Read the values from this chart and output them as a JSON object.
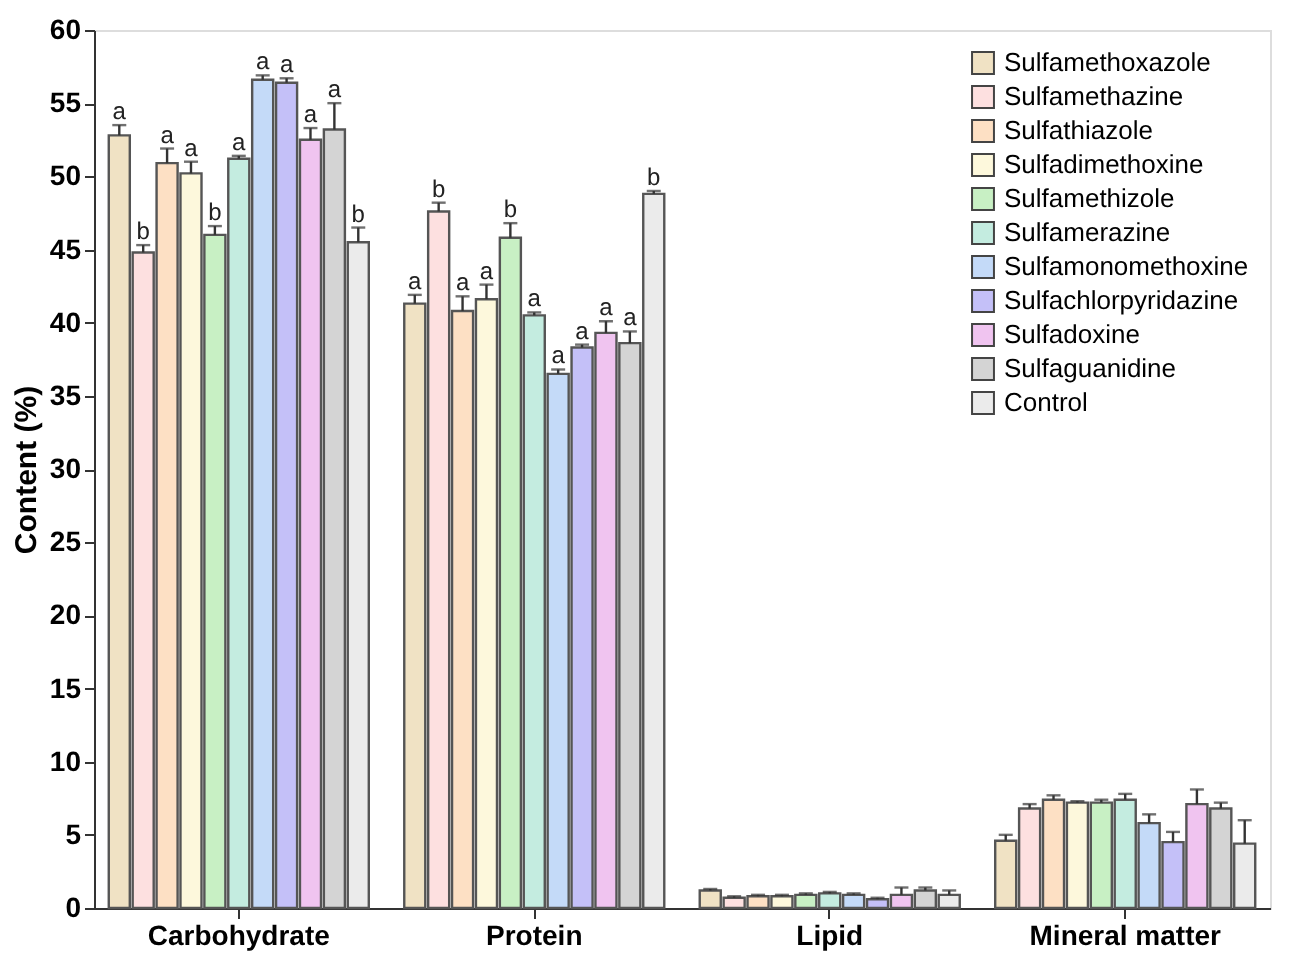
{
  "chart_data": {
    "type": "bar",
    "ylabel": "Content (%)",
    "categories": [
      "Carbohydrate",
      "Protein",
      "Lipid",
      "Mineral matter"
    ],
    "ylim": [
      0,
      60
    ],
    "yticks": [
      0,
      5,
      10,
      15,
      20,
      25,
      30,
      35,
      40,
      45,
      50,
      55,
      60
    ],
    "grid": false,
    "legend": "top right",
    "series": [
      {
        "name": "Sulfamethoxazole",
        "color": "#f0e2c4",
        "values": [
          52.8,
          41.3,
          1.2,
          4.6
        ],
        "errors": [
          0.7,
          0.6,
          0.1,
          0.4
        ],
        "value_labels": [
          "a",
          "a",
          null,
          null
        ]
      },
      {
        "name": "Sulfamethazine",
        "color": "#fde0e0",
        "values": [
          44.8,
          47.6,
          0.7,
          6.8
        ],
        "errors": [
          0.5,
          0.6,
          0.1,
          0.3
        ],
        "value_labels": [
          "b",
          "b",
          null,
          null
        ]
      },
      {
        "name": "Sulfathiazole",
        "color": "#fde0c4",
        "values": [
          50.9,
          40.8,
          0.8,
          7.4
        ],
        "errors": [
          1.0,
          1.0,
          0.1,
          0.3
        ],
        "value_labels": [
          "a",
          "a",
          null,
          null
        ]
      },
      {
        "name": "Sulfadimethoxine",
        "color": "#fdf8dc",
        "values": [
          50.2,
          41.6,
          0.8,
          7.2
        ],
        "errors": [
          0.8,
          1.0,
          0.1,
          0.1
        ],
        "value_labels": [
          "a",
          "a",
          null,
          null
        ]
      },
      {
        "name": "Sulfamethizole",
        "color": "#c8f0c4",
        "values": [
          46.0,
          45.8,
          0.9,
          7.2
        ],
        "errors": [
          0.6,
          1.0,
          0.1,
          0.2
        ],
        "value_labels": [
          "b",
          "b",
          null,
          null
        ]
      },
      {
        "name": "Sulfamerazine",
        "color": "#c4ece0",
        "values": [
          51.2,
          40.5,
          1.0,
          7.4
        ],
        "errors": [
          0.2,
          0.2,
          0.1,
          0.4
        ],
        "value_labels": [
          "a",
          "a",
          null,
          null
        ]
      },
      {
        "name": "Sulfamonomethoxine",
        "color": "#c4daf8",
        "values": [
          56.6,
          36.5,
          0.9,
          5.8
        ],
        "errors": [
          0.3,
          0.3,
          0.1,
          0.6
        ],
        "value_labels": [
          "a",
          "a",
          null,
          null
        ]
      },
      {
        "name": "Sulfachlorpyridazine",
        "color": "#c4c0f8",
        "values": [
          56.4,
          38.3,
          0.6,
          4.5
        ],
        "errors": [
          0.3,
          0.2,
          0.1,
          0.7
        ],
        "value_labels": [
          "a",
          "a",
          null,
          null
        ]
      },
      {
        "name": "Sulfadoxine",
        "color": "#f0c4f0",
        "values": [
          52.5,
          39.3,
          0.9,
          7.1
        ],
        "errors": [
          0.8,
          0.8,
          0.5,
          1.0
        ],
        "value_labels": [
          "a",
          "a",
          null,
          null
        ]
      },
      {
        "name": "Sulfaguanidine",
        "color": "#d4d4d4",
        "values": [
          53.2,
          38.6,
          1.2,
          6.8
        ],
        "errors": [
          1.8,
          0.8,
          0.2,
          0.4
        ],
        "value_labels": [
          "a",
          "a",
          null,
          null
        ]
      },
      {
        "name": "Control",
        "color": "#ebebeb",
        "values": [
          45.5,
          48.8,
          0.9,
          4.4
        ],
        "errors": [
          1.0,
          0.2,
          0.3,
          1.6
        ],
        "value_labels": [
          "b",
          "b",
          null,
          null
        ]
      }
    ]
  }
}
